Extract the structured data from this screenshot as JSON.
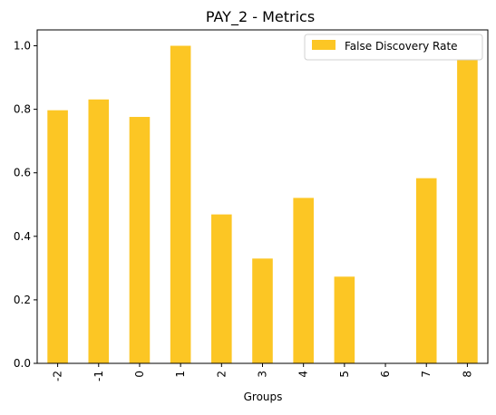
{
  "chart_data": {
    "type": "bar",
    "title": "PAY_2 - Metrics",
    "xlabel": "Groups",
    "ylabel": "",
    "categories": [
      "-2",
      "-1",
      "0",
      "1",
      "2",
      "3",
      "4",
      "5",
      "6",
      "7",
      "8"
    ],
    "series": [
      {
        "name": "False Discovery Rate",
        "values": [
          0.797,
          0.831,
          0.776,
          1.0,
          0.469,
          0.33,
          0.521,
          0.273,
          0.0,
          0.583,
          1.0
        ],
        "color": "#fcc624"
      }
    ],
    "ylim": [
      0,
      1.05
    ],
    "yticks": [
      "0.0",
      "0.2",
      "0.4",
      "0.6",
      "0.8",
      "1.0"
    ],
    "ytick_values": [
      0.0,
      0.2,
      0.4,
      0.6,
      0.8,
      1.0
    ],
    "legend_position": "top-right",
    "grid": false
  }
}
